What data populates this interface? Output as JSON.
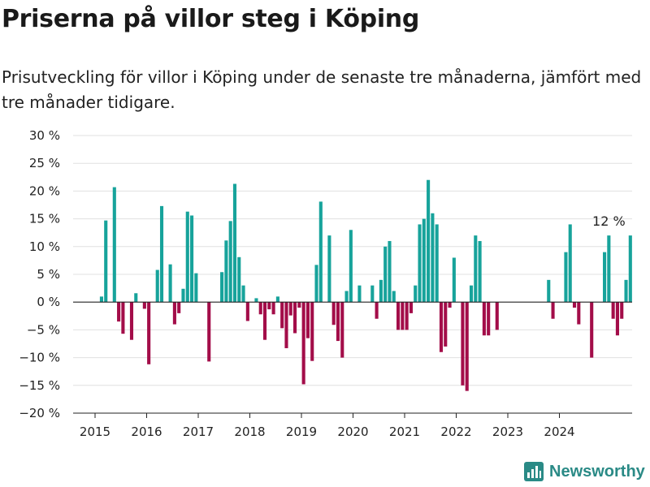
{
  "title": "Priserna på villor steg i Köping",
  "subtitle": "Prisutveckling för villor i Köping under de senaste tre månaderna, jämfört med tre månader tidigare.",
  "brand": {
    "name": "Newsworthy",
    "icon": "bar-chart-logo-icon"
  },
  "colors": {
    "positive": "#17a39b",
    "negative": "#a30d49",
    "grid": "#e0e0e0",
    "axis": "#222222",
    "brand": "#2a8a86"
  },
  "chart_data": {
    "type": "bar",
    "grid": true,
    "ylim": [
      -20,
      30
    ],
    "yticks": [
      30,
      25,
      20,
      15,
      10,
      5,
      0,
      -5,
      -10,
      -15,
      -20
    ],
    "ytick_labels": [
      "30 %",
      "25 %",
      "20 %",
      "15 %",
      "10 %",
      "5 %",
      "0 %",
      "−5 %",
      "−10 %",
      "−15 %",
      "−20 %"
    ],
    "xtick_labels": [
      "2015",
      "2016",
      "2017",
      "2018",
      "2019",
      "2020",
      "2021",
      "2022",
      "2023",
      "2024"
    ],
    "x_start": "2015-01",
    "annotation": {
      "text": "12 %",
      "month": "2024-12"
    },
    "values": [
      null,
      1,
      14.7,
      null,
      20.7,
      -3.5,
      -5.7,
      null,
      -6.8,
      1.6,
      null,
      -1.2,
      -11.2,
      null,
      5.8,
      17.3,
      null,
      6.8,
      -4,
      -2,
      2.4,
      16.3,
      15.6,
      5.2,
      null,
      null,
      -10.7,
      null,
      null,
      5.4,
      11.1,
      14.6,
      21.3,
      8.1,
      3,
      -3.4,
      null,
      0.7,
      -2.2,
      -6.8,
      -1.3,
      -2.2,
      1,
      -4.7,
      -8.3,
      -2.4,
      -5.6,
      -1,
      -14.8,
      -6.5,
      -10.6,
      6.7,
      18.1,
      null,
      12,
      -4.1,
      -7,
      -10,
      2,
      13,
      null,
      3,
      null,
      null,
      3,
      -3,
      4,
      10,
      11,
      2,
      -5,
      -5,
      -5,
      -2,
      3,
      14,
      15,
      22,
      16,
      14,
      -9,
      -8,
      -1,
      8,
      null,
      -15,
      -16,
      3,
      12,
      11,
      -6,
      -6,
      null,
      -5,
      null,
      null,
      null,
      null,
      null,
      null,
      null,
      null,
      null,
      null,
      null,
      4,
      -3,
      null,
      null,
      9,
      14,
      -1,
      -4,
      null,
      null,
      -10,
      null,
      null,
      9,
      12,
      -3,
      -6,
      -3,
      4,
      12
    ]
  }
}
